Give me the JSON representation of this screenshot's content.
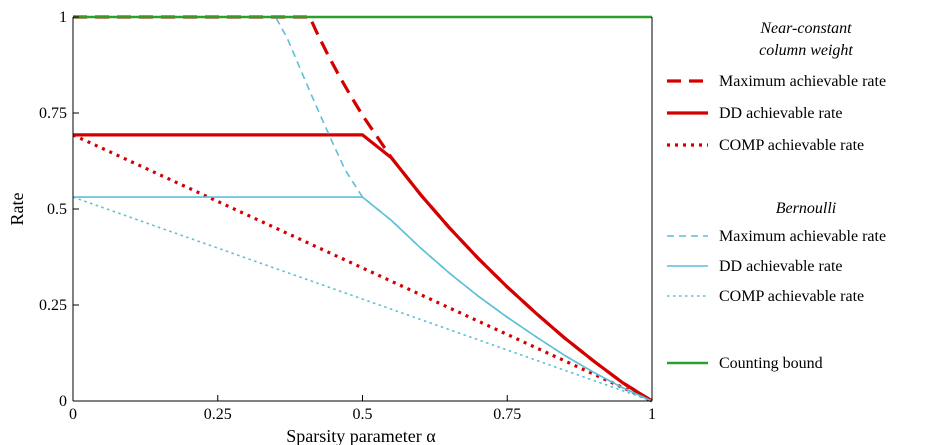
{
  "chart_data": {
    "type": "line",
    "title": "",
    "xlabel": "Sparsity parameter α",
    "ylabel": "Rate",
    "xlim": [
      0,
      1
    ],
    "ylim": [
      0,
      1
    ],
    "grid": false,
    "legend_position": "right",
    "x_ticks": [
      "0",
      "0.25",
      "0.5",
      "0.75",
      "1"
    ],
    "y_ticks": [
      "0",
      "0.25",
      "0.5",
      "0.75",
      "1"
    ],
    "legend_groups": [
      {
        "title_lines": [
          "Near-constant",
          "column weight"
        ],
        "entries": [
          {
            "series": 0,
            "label": "Maximum achievable rate"
          },
          {
            "series": 1,
            "label": "DD achievable rate"
          },
          {
            "series": 2,
            "label": "COMP achievable rate"
          }
        ]
      },
      {
        "title_lines": [
          "Bernoulli"
        ],
        "entries": [
          {
            "series": 3,
            "label": "Maximum achievable rate"
          },
          {
            "series": 4,
            "label": "DD achievable rate"
          },
          {
            "series": 5,
            "label": "COMP achievable rate"
          }
        ]
      },
      {
        "title_lines": [],
        "entries": [
          {
            "series": 6,
            "label": "Counting bound"
          }
        ]
      }
    ],
    "series": [
      {
        "name": "Maximum achievable rate",
        "group": "Near-constant column weight",
        "color": "#d40000",
        "style": "dashed",
        "width": 3.2,
        "points": [
          [
            0,
            1
          ],
          [
            0.409,
            1
          ],
          [
            0.42,
            0.963
          ],
          [
            0.44,
            0.902
          ],
          [
            0.46,
            0.846
          ],
          [
            0.48,
            0.794
          ],
          [
            0.5,
            0.744
          ],
          [
            0.55,
            0.633
          ],
          [
            0.6,
            0.538
          ],
          [
            0.65,
            0.451
          ],
          [
            0.7,
            0.371
          ],
          [
            0.75,
            0.297
          ],
          [
            0.8,
            0.228
          ],
          [
            0.85,
            0.163
          ],
          [
            0.9,
            0.103
          ],
          [
            0.95,
            0.047
          ],
          [
            1,
            0
          ]
        ]
      },
      {
        "name": "DD achievable rate",
        "group": "Near-constant column weight",
        "color": "#d40000",
        "style": "solid",
        "width": 3.2,
        "points": [
          [
            0,
            0.693
          ],
          [
            0.5,
            0.693
          ],
          [
            0.55,
            0.633
          ],
          [
            0.6,
            0.538
          ],
          [
            0.65,
            0.451
          ],
          [
            0.7,
            0.371
          ],
          [
            0.75,
            0.297
          ],
          [
            0.8,
            0.228
          ],
          [
            0.85,
            0.163
          ],
          [
            0.9,
            0.103
          ],
          [
            0.95,
            0.047
          ],
          [
            1,
            0
          ]
        ]
      },
      {
        "name": "COMP achievable rate",
        "group": "Near-constant column weight",
        "color": "#d40000",
        "style": "dotted",
        "width": 3.2,
        "points": [
          [
            0,
            0.693
          ],
          [
            1,
            0
          ]
        ]
      },
      {
        "name": "Maximum achievable rate",
        "group": "Bernoulli",
        "color": "#5bc0d8",
        "style": "dashed",
        "width": 1.6,
        "points": [
          [
            0,
            1
          ],
          [
            0.35,
            1
          ],
          [
            0.37,
            0.945
          ],
          [
            0.39,
            0.874
          ],
          [
            0.41,
            0.803
          ],
          [
            0.43,
            0.734
          ],
          [
            0.45,
            0.667
          ],
          [
            0.47,
            0.602
          ],
          [
            0.5,
            0.531
          ],
          [
            0.55,
            0.47
          ],
          [
            0.6,
            0.399
          ],
          [
            0.65,
            0.333
          ],
          [
            0.7,
            0.273
          ],
          [
            0.75,
            0.218
          ],
          [
            0.8,
            0.167
          ],
          [
            0.85,
            0.118
          ],
          [
            0.9,
            0.074
          ],
          [
            0.95,
            0.034
          ],
          [
            1,
            0
          ]
        ]
      },
      {
        "name": "DD achievable rate",
        "group": "Bernoulli",
        "color": "#5bc0d8",
        "style": "solid",
        "width": 1.6,
        "points": [
          [
            0,
            0.531
          ],
          [
            0.5,
            0.531
          ],
          [
            0.55,
            0.47
          ],
          [
            0.6,
            0.399
          ],
          [
            0.65,
            0.333
          ],
          [
            0.7,
            0.273
          ],
          [
            0.75,
            0.218
          ],
          [
            0.8,
            0.167
          ],
          [
            0.85,
            0.118
          ],
          [
            0.9,
            0.074
          ],
          [
            0.95,
            0.034
          ],
          [
            1,
            0
          ]
        ]
      },
      {
        "name": "COMP achievable rate",
        "group": "Bernoulli",
        "color": "#5bc0d8",
        "style": "dotted",
        "width": 1.6,
        "points": [
          [
            0,
            0.531
          ],
          [
            1,
            0
          ]
        ]
      },
      {
        "name": "Counting bound",
        "group": "",
        "color": "#2ca02c",
        "style": "solid",
        "width": 2.4,
        "points": [
          [
            0,
            1
          ],
          [
            1,
            1
          ]
        ]
      }
    ]
  }
}
